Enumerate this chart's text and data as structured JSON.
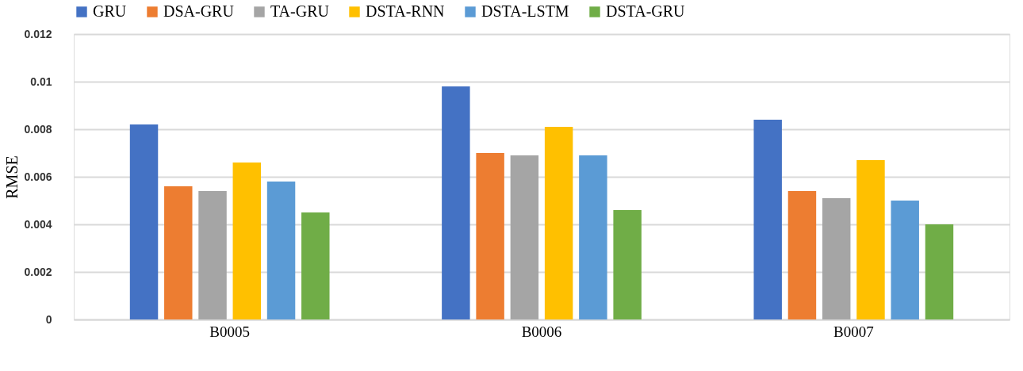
{
  "chart_data": {
    "type": "bar",
    "ylabel": "RMSE",
    "categories": [
      "B0005",
      "B0006",
      "B0007"
    ],
    "series": [
      {
        "name": "GRU",
        "color": "#4472c4",
        "values": [
          0.0082,
          0.0098,
          0.0084
        ]
      },
      {
        "name": "DSA-GRU",
        "color": "#ed7d31",
        "values": [
          0.0056,
          0.007,
          0.0054
        ]
      },
      {
        "name": "TA-GRU",
        "color": "#a5a5a5",
        "values": [
          0.0054,
          0.0069,
          0.0051
        ]
      },
      {
        "name": "DSTA-RNN",
        "color": "#ffc000",
        "values": [
          0.0066,
          0.0081,
          0.0067
        ]
      },
      {
        "name": "DSTA-LSTM",
        "color": "#5b9bd5",
        "values": [
          0.0058,
          0.0069,
          0.005
        ]
      },
      {
        "name": "DSTA-GRU",
        "color": "#70ad47",
        "values": [
          0.0045,
          0.0046,
          0.004
        ]
      }
    ],
    "ylim": [
      0,
      0.012
    ],
    "yticks": [
      0,
      0.002,
      0.004,
      0.006,
      0.008,
      0.01,
      0.012
    ],
    "grid": "y",
    "legend": "top"
  }
}
